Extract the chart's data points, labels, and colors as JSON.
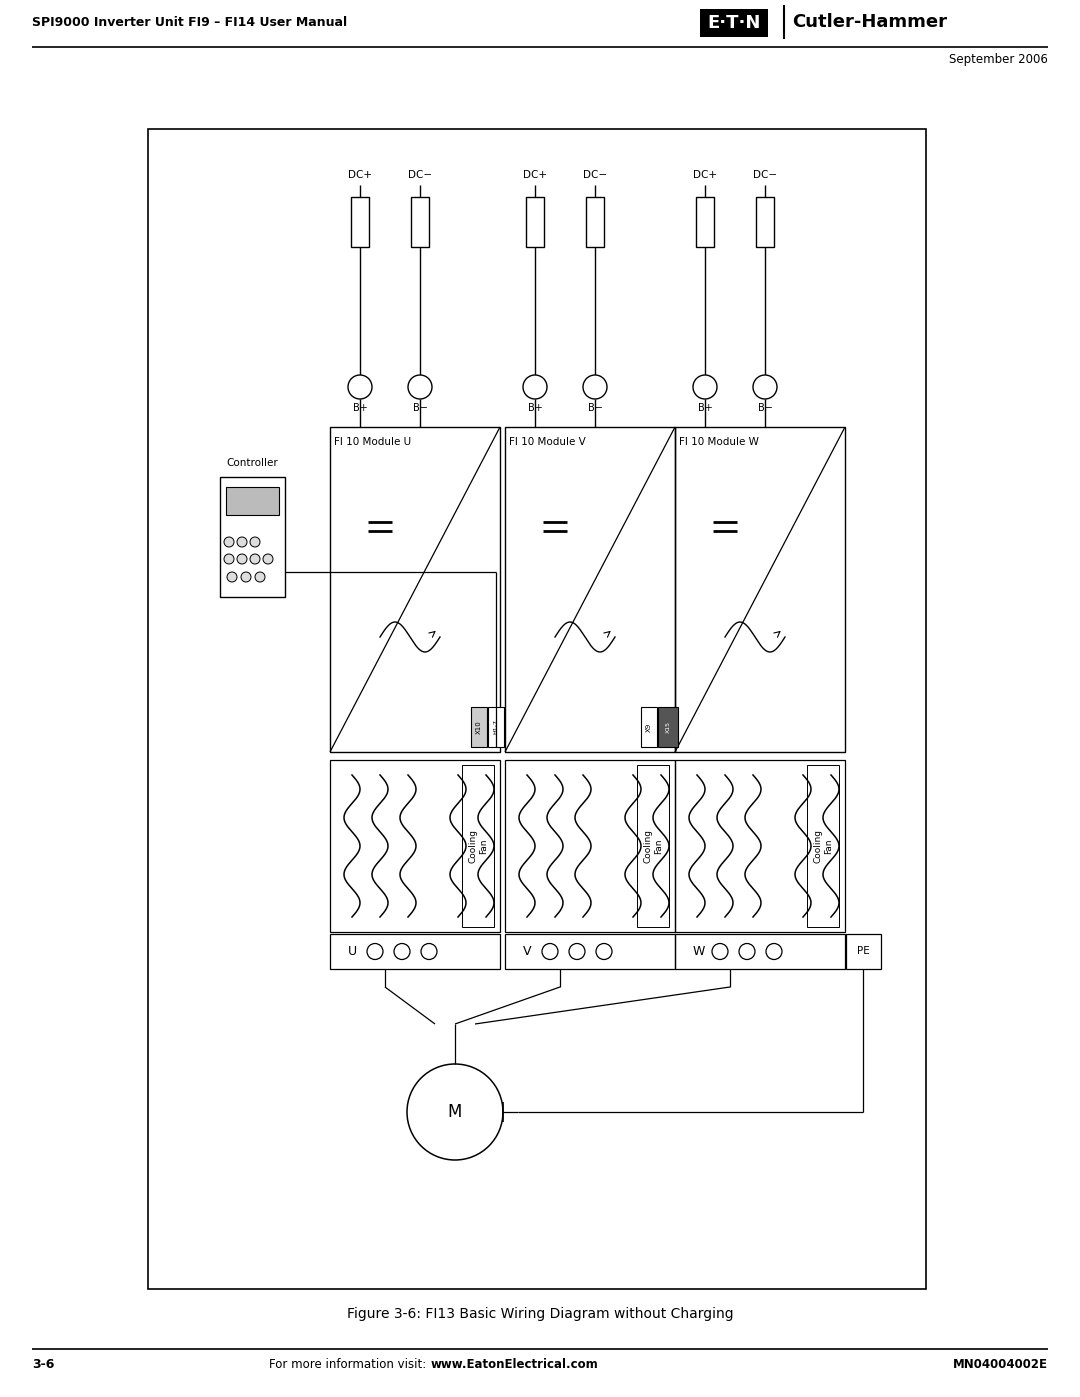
{
  "page_title_left": "SPI9000 Inverter Unit FI9 – FI14 User Manual",
  "date": "September 2006",
  "page_num": "3-6",
  "footer_right": "MN04004002E",
  "figure_caption": "Figure 3-6: FI13 Basic Wiring Diagram without Charging",
  "bg_color": "#ffffff",
  "module_labels": [
    "FI 10 Module U",
    "FI 10 Module V",
    "FI 10 Module W"
  ],
  "phase_labels": [
    "U",
    "V",
    "W"
  ],
  "controller_label": "Controller",
  "cooling_label": "Cooling\nFan",
  "dc_plus": "DC+",
  "dc_minus": "DC−",
  "b_plus": "B+",
  "b_minus": "B−"
}
